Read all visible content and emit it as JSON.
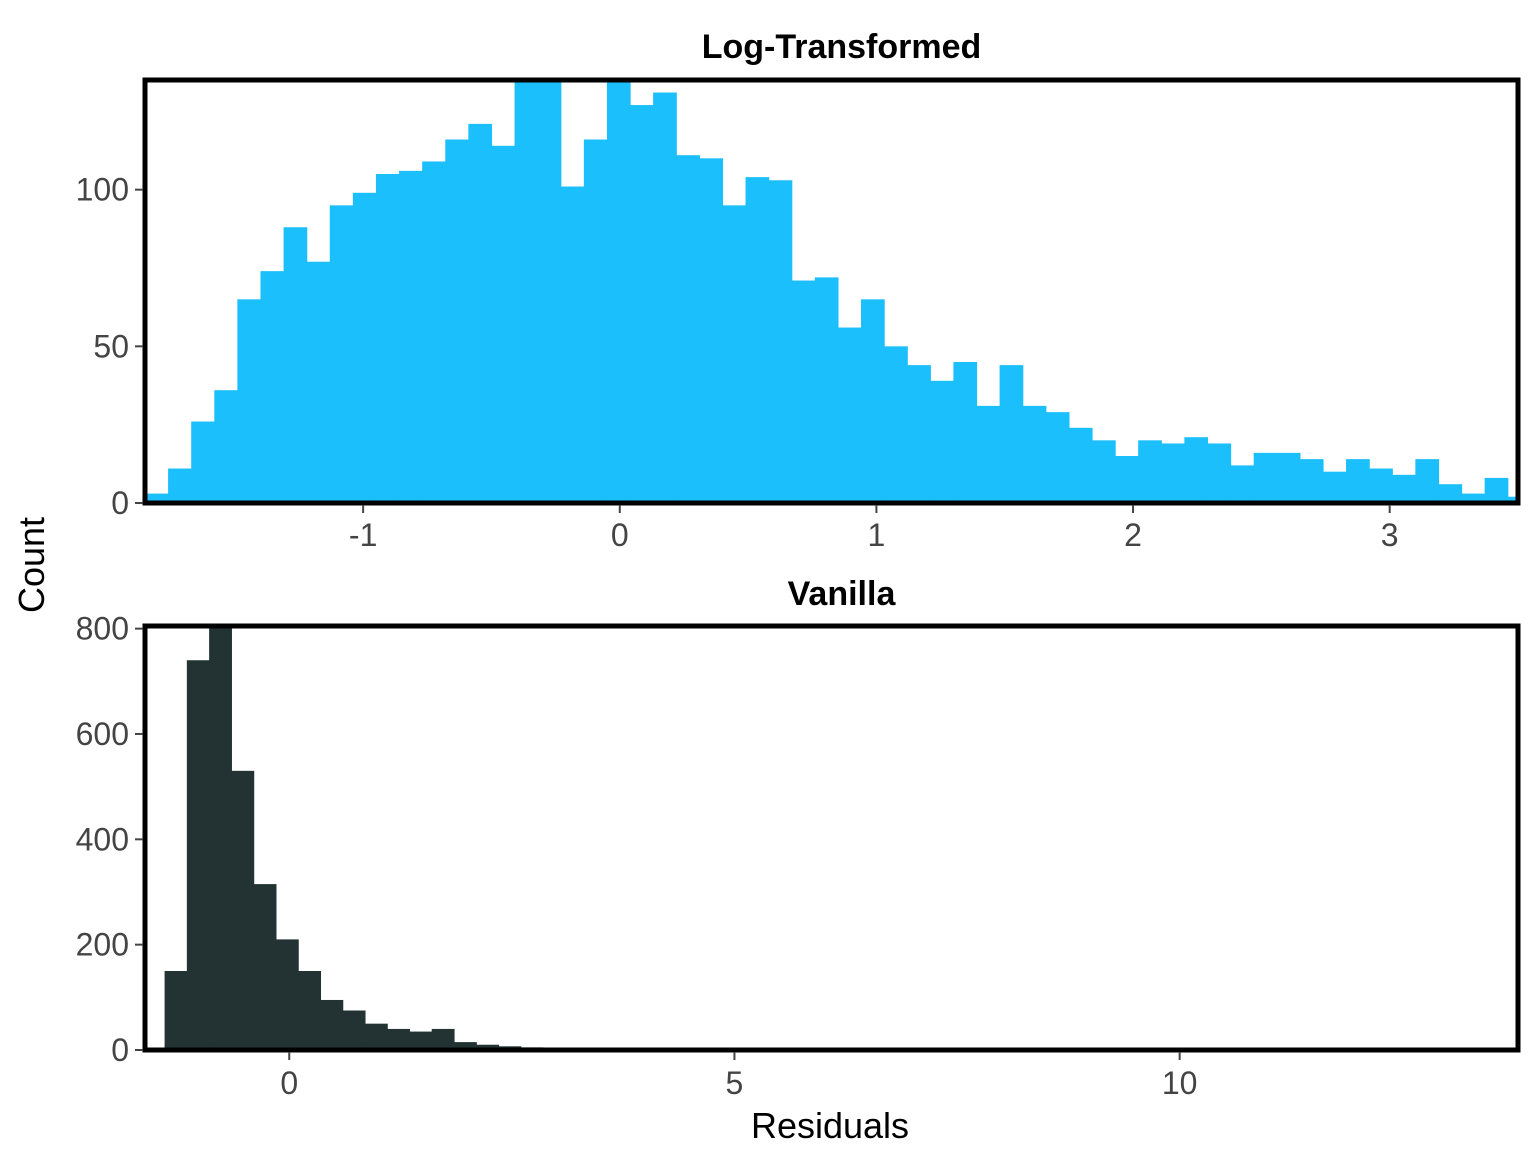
{
  "chart_data": [
    {
      "type": "bar",
      "title": "Log-Transformed",
      "bin_start": -1.85,
      "bin_width": 0.09,
      "values": [
        3,
        11,
        26,
        36,
        65,
        74,
        88,
        77,
        95,
        99,
        105,
        106,
        109,
        116,
        121,
        114,
        135,
        135,
        101,
        116,
        135,
        127,
        131,
        111,
        110,
        95,
        104,
        103,
        71,
        72,
        56,
        65,
        50,
        44,
        39,
        45,
        31,
        44,
        31,
        29,
        24,
        20,
        15,
        20,
        19,
        21,
        19,
        12,
        16,
        16,
        14,
        10,
        14,
        11,
        9,
        14,
        6,
        3,
        8,
        2
      ],
      "xlim": [
        -1.85,
        3.5
      ],
      "ylim": [
        0,
        135
      ],
      "xticks": [
        -1,
        0,
        1,
        2,
        3
      ],
      "yticks": [
        0,
        50,
        100
      ],
      "color": "#1BBFFC"
    },
    {
      "type": "bar",
      "title": "Vanilla",
      "bin_start": -1.4,
      "bin_width": 0.25,
      "values": [
        150,
        740,
        805,
        530,
        315,
        210,
        150,
        95,
        75,
        50,
        40,
        35,
        40,
        15,
        10,
        7,
        5,
        4,
        3,
        3,
        3,
        2,
        2,
        2,
        2,
        2,
        2,
        2,
        2,
        2,
        2,
        2,
        2,
        2,
        2,
        2,
        2,
        2,
        2,
        2,
        2,
        2,
        2,
        2,
        2,
        2,
        2,
        2,
        2,
        2,
        2,
        2,
        2,
        2,
        2,
        2,
        2,
        2
      ],
      "xlim": [
        -1.62,
        13.8
      ],
      "ylim": [
        0,
        805
      ],
      "xticks": [
        0,
        5,
        10
      ],
      "yticks": [
        0,
        200,
        400,
        600,
        800
      ],
      "color": "#233333"
    }
  ],
  "axes": {
    "shared_ylabel": "Count",
    "xlabel": "Residuals"
  }
}
